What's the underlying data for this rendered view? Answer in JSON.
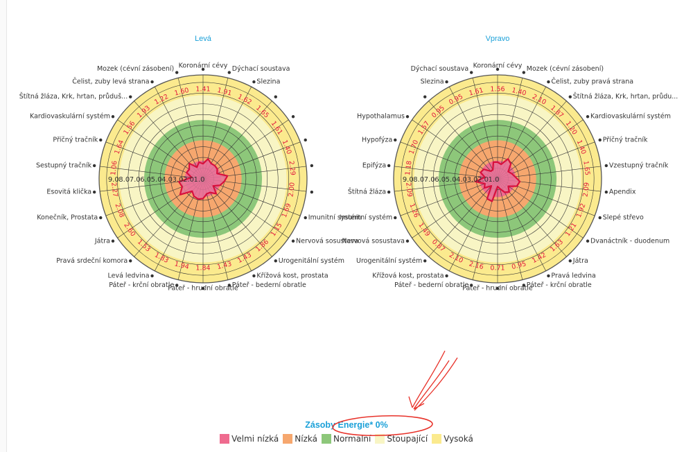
{
  "chart_data": [
    {
      "type": "radar",
      "title": "Levá",
      "r_axis_ticks": [
        "9.0",
        "8.0",
        "7.0",
        "6.0",
        "5.0",
        "4.0",
        "3.0",
        "2.0",
        "1.0"
      ],
      "bands": [
        {
          "name": "Velmi nízká",
          "from": 0,
          "to": 1.7
        },
        {
          "name": "Nízká",
          "from": 1.7,
          "to": 3.6
        },
        {
          "name": "Normalní",
          "from": 3.6,
          "to": 5.5
        },
        {
          "name": "Stoupající",
          "from": 5.5,
          "to": 7.8
        },
        {
          "name": "Vysoká",
          "from": 7.8,
          "to": 9.7
        }
      ],
      "categories": [
        "Koronární cévy",
        "Dýchací soustava",
        "Slezina",
        "",
        "",
        "",
        "",
        "",
        "Imunitní systém",
        "Nervová sosustava",
        "Urogenitální systém",
        "Křížová kost, prostata",
        "Páteř - bederní obratle",
        "Páteř - hrudní obratle",
        "Páteř - krční obratle",
        "Levá ledvina",
        "Pravá srdeční komora",
        "Játra",
        "Konečník, Prostata",
        "Esovitá klička",
        "Sestupný tračník",
        "Příčný tračník",
        "Kardiovaskulární systém",
        "Štítná žláza, Krk, hrtan, průduš...",
        "Čelist, zuby levá strana",
        "Mozek (cévní zásobení)"
      ],
      "values": [
        1.41,
        1.91,
        1.62,
        1.65,
        1.61,
        1.4,
        2.29,
        2.0,
        1.69,
        1.15,
        1.86,
        1.43,
        1.43,
        1.84,
        1.94,
        1.83,
        1.53,
        2.6,
        2.08,
        2.27,
        1.06,
        1.64,
        1.56,
        1.93,
        1.22,
        1.6
      ]
    },
    {
      "type": "radar",
      "title": "Vpravo",
      "r_axis_ticks": [
        "9.0",
        "8.0",
        "7.0",
        "6.0",
        "5.0",
        "4.0",
        "3.0",
        "2.0",
        "1.0"
      ],
      "bands": [
        {
          "name": "Velmi nízká",
          "from": 0,
          "to": 1.7
        },
        {
          "name": "Nízká",
          "from": 1.7,
          "to": 3.6
        },
        {
          "name": "Normalní",
          "from": 3.6,
          "to": 5.5
        },
        {
          "name": "Stoupající",
          "from": 5.5,
          "to": 7.8
        },
        {
          "name": "Vysoká",
          "from": 7.8,
          "to": 9.7
        }
      ],
      "categories": [
        "Koronární cévy",
        "Mozek (cévní zásobení)",
        "Čelist, zuby pravá strana",
        "Štítná žláza, Krk, hrtan, průdu...",
        "Kardiovaskulární systém",
        "Příčný tračník",
        "Vzestupný tračník",
        "Apendix",
        "Slepé střevo",
        "Dvanáctník - duodenum",
        "Játra",
        "Pravá ledvina",
        "Páteř - krční obratle",
        "Páteř - hrudní obratle",
        "Páteř - bederní obratle",
        "Křížová kost, prostata",
        "Urogenitální systém",
        "Nervová sosustava",
        "Imunitní systém",
        "Štítná žláza",
        "Epifýza",
        "Hypofýza",
        "Hypothalamus",
        "",
        "Slezina",
        "Dýchací soustava"
      ],
      "values": [
        1.56,
        1.4,
        2.1,
        1.87,
        1.2,
        1.4,
        1.65,
        2.09,
        1.92,
        1.21,
        1.63,
        1.42,
        0.95,
        0.71,
        2.16,
        2.1,
        0.87,
        1.49,
        1.26,
        2.09,
        1.18,
        1.7,
        1.57,
        0.95,
        0.95,
        1.61
      ]
    }
  ],
  "footer": {
    "title": "Zásoby Energie* 0%",
    "legend": [
      {
        "label": "Velmi nízká",
        "color": "#ef6b8f"
      },
      {
        "label": "Nízká",
        "color": "#f6a76e"
      },
      {
        "label": "Normalní",
        "color": "#8dc77a"
      },
      {
        "label": "Stoupající",
        "color": "#f8f5c4"
      },
      {
        "label": "Vysoká",
        "color": "#fbea8e"
      }
    ]
  },
  "colors": {
    "title": "#1aa0d8",
    "series_line": "#d8103c",
    "series_fill": "#e8769a",
    "value_label": "#e0163c",
    "ring_border": "#555555",
    "annotation": "#e8322a"
  }
}
